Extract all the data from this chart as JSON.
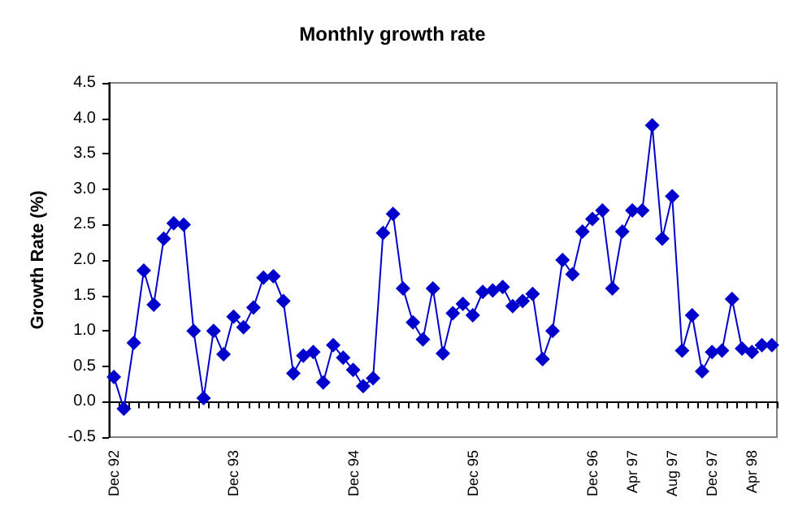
{
  "chart_data": {
    "type": "line",
    "title": "Monthly growth rate",
    "ylabel": "Growth Rate (%)",
    "categories": [
      "Dec 92",
      null,
      null,
      null,
      null,
      null,
      null,
      null,
      null,
      null,
      null,
      null,
      "Dec 93",
      null,
      null,
      null,
      null,
      null,
      null,
      null,
      null,
      null,
      null,
      null,
      "Dec 94",
      null,
      null,
      null,
      null,
      null,
      null,
      null,
      null,
      null,
      null,
      null,
      "Dec 95",
      null,
      null,
      null,
      null,
      null,
      null,
      null,
      null,
      null,
      null,
      null,
      "Dec 96",
      null,
      null,
      null,
      "Apr 97",
      null,
      null,
      null,
      "Aug 97",
      null,
      null,
      null,
      "Dec 97",
      null,
      null,
      null,
      "Apr 98",
      null,
      null
    ],
    "series": [
      {
        "color": "#0000cc",
        "values": [
          0.35,
          -0.1,
          0.83,
          1.85,
          1.37,
          2.3,
          2.52,
          2.5,
          1.0,
          0.05,
          1.0,
          0.67,
          1.2,
          1.05,
          1.33,
          1.75,
          1.77,
          1.42,
          0.4,
          0.65,
          0.7,
          0.27,
          0.8,
          0.62,
          0.45,
          0.22,
          0.33,
          2.38,
          2.65,
          1.6,
          1.12,
          0.88,
          1.6,
          0.68,
          1.25,
          1.38,
          1.22,
          1.55,
          1.57,
          1.62,
          1.35,
          1.42,
          1.52,
          0.6,
          1.0,
          2.0,
          1.8,
          2.4,
          2.58,
          2.7,
          1.6,
          2.4,
          2.7,
          2.7,
          3.9,
          2.3,
          2.9,
          0.72,
          1.22,
          0.43,
          0.7,
          0.72,
          1.45,
          0.75,
          0.7,
          0.8,
          0.8
        ]
      }
    ],
    "ylim": [
      -0.5,
      4.5
    ],
    "yticks": [
      {
        "value": -0.5,
        "label": "-0.5"
      },
      {
        "value": 0,
        "label": "0.0"
      },
      {
        "value": 0.5,
        "label": "0.5"
      },
      {
        "value": 1,
        "label": "1.0"
      },
      {
        "value": 1.5,
        "label": "1.5"
      },
      {
        "value": 2,
        "label": "2.0"
      },
      {
        "value": 2.5,
        "label": "2.5"
      },
      {
        "value": 3,
        "label": "3.0"
      },
      {
        "value": 3.5,
        "label": "3.5"
      },
      {
        "value": 4,
        "label": "4.0"
      },
      {
        "value": 4.5,
        "label": "4.5"
      }
    ],
    "marker": "diamond",
    "line_style": "solid"
  }
}
